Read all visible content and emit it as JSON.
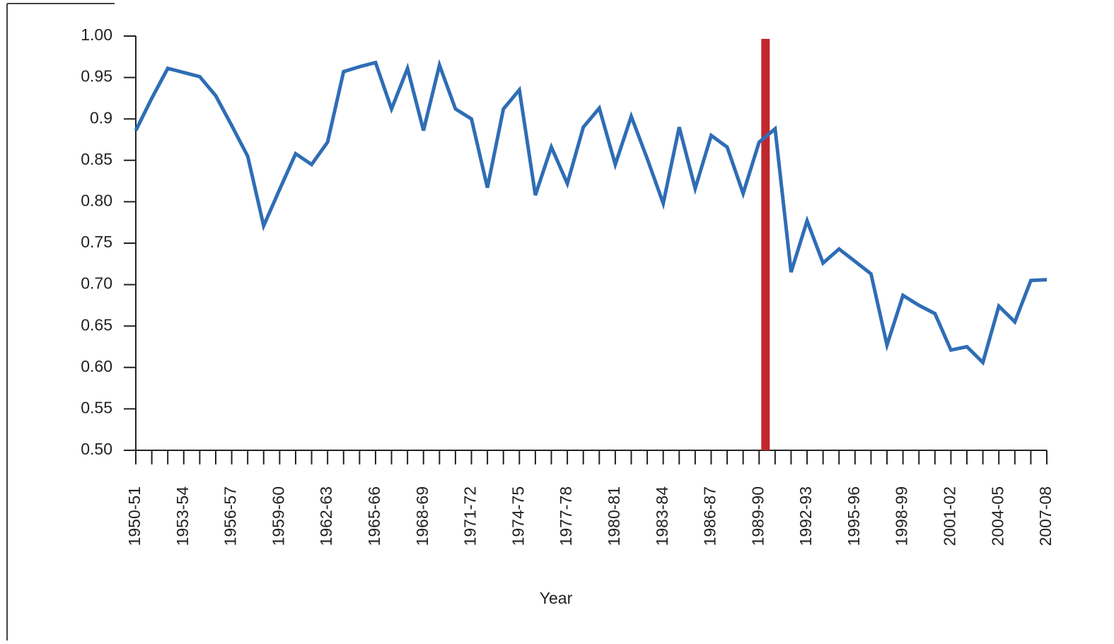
{
  "chart_data": {
    "type": "line",
    "x_label": "Year",
    "categories": [
      "1950-51",
      null,
      null,
      "1953-54",
      null,
      null,
      "1956-57",
      null,
      null,
      "1959-60",
      null,
      null,
      "1962-63",
      null,
      null,
      "1965-66",
      null,
      null,
      "1968-69",
      null,
      null,
      "1971-72",
      null,
      null,
      "1974-75",
      null,
      null,
      "1977-78",
      null,
      null,
      "1980-81",
      null,
      null,
      "1983-84",
      null,
      null,
      "1986-87",
      null,
      null,
      "1989-90",
      null,
      null,
      "1992-93",
      null,
      null,
      "1995-96",
      null,
      null,
      "1998-99",
      null,
      null,
      "2001-02",
      null,
      null,
      "2004-05",
      null,
      null,
      "2007-08"
    ],
    "values": [
      0.886,
      0.925,
      0.961,
      0.956,
      0.951,
      0.928,
      0.892,
      0.855,
      0.771,
      0.815,
      0.858,
      0.845,
      0.872,
      0.957,
      0.963,
      0.968,
      0.912,
      0.961,
      0.886,
      0.965,
      0.912,
      0.9,
      0.817,
      0.912,
      0.935,
      0.808,
      0.866,
      0.822,
      0.89,
      0.913,
      0.845,
      0.903,
      0.852,
      0.798,
      0.89,
      0.816,
      0.88,
      0.866,
      0.81,
      0.872,
      0.888,
      0.715,
      0.777,
      0.726,
      0.743,
      0.728,
      0.713,
      0.627,
      0.687,
      0.675,
      0.665,
      0.621,
      0.625,
      0.606,
      0.674,
      0.655,
      0.705,
      0.706
    ],
    "color": "#2f6db5",
    "marker_color": "#c0282d",
    "ylim": [
      0.5,
      1
    ],
    "yticks": [
      {
        "value": 0.5,
        "label": "0.50"
      },
      0.55,
      {
        "value": 0.6,
        "label": "0.60"
      },
      0.65,
      {
        "value": 0.7,
        "label": "0.70"
      },
      0.75,
      {
        "value": 0.8,
        "label": "0.80"
      },
      0.85,
      0.9,
      0.95,
      {
        "value": 1,
        "label": "1.00"
      }
    ]
  }
}
